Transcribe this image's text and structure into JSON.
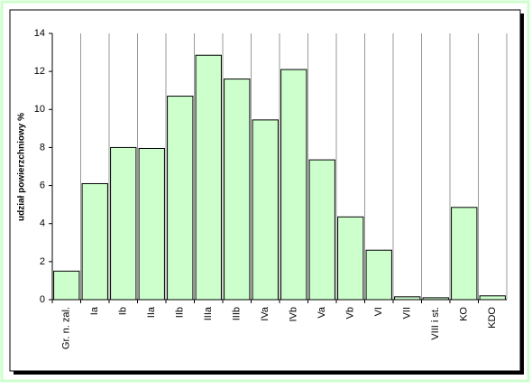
{
  "chart_data": {
    "type": "bar",
    "y_label": "udział powierzchniowy %",
    "categories": [
      "Gr. n. zal.",
      "Ia",
      "Ib",
      "IIa",
      "IIb",
      "IIIa",
      "IIIb",
      "IVa",
      "IVb",
      "Va",
      "Vb",
      "VI",
      "VII",
      "VIII i st.",
      "KO",
      "KDO"
    ],
    "values": [
      1.5,
      6.1,
      8.0,
      7.95,
      10.7,
      12.85,
      11.6,
      9.45,
      12.1,
      7.35,
      4.35,
      2.6,
      0.15,
      0.1,
      4.85,
      0.2
    ],
    "color": "#ccffcc",
    "ylim": [
      0,
      14
    ],
    "yticks": [
      0,
      2,
      4,
      6,
      8,
      10,
      12,
      14
    ]
  }
}
